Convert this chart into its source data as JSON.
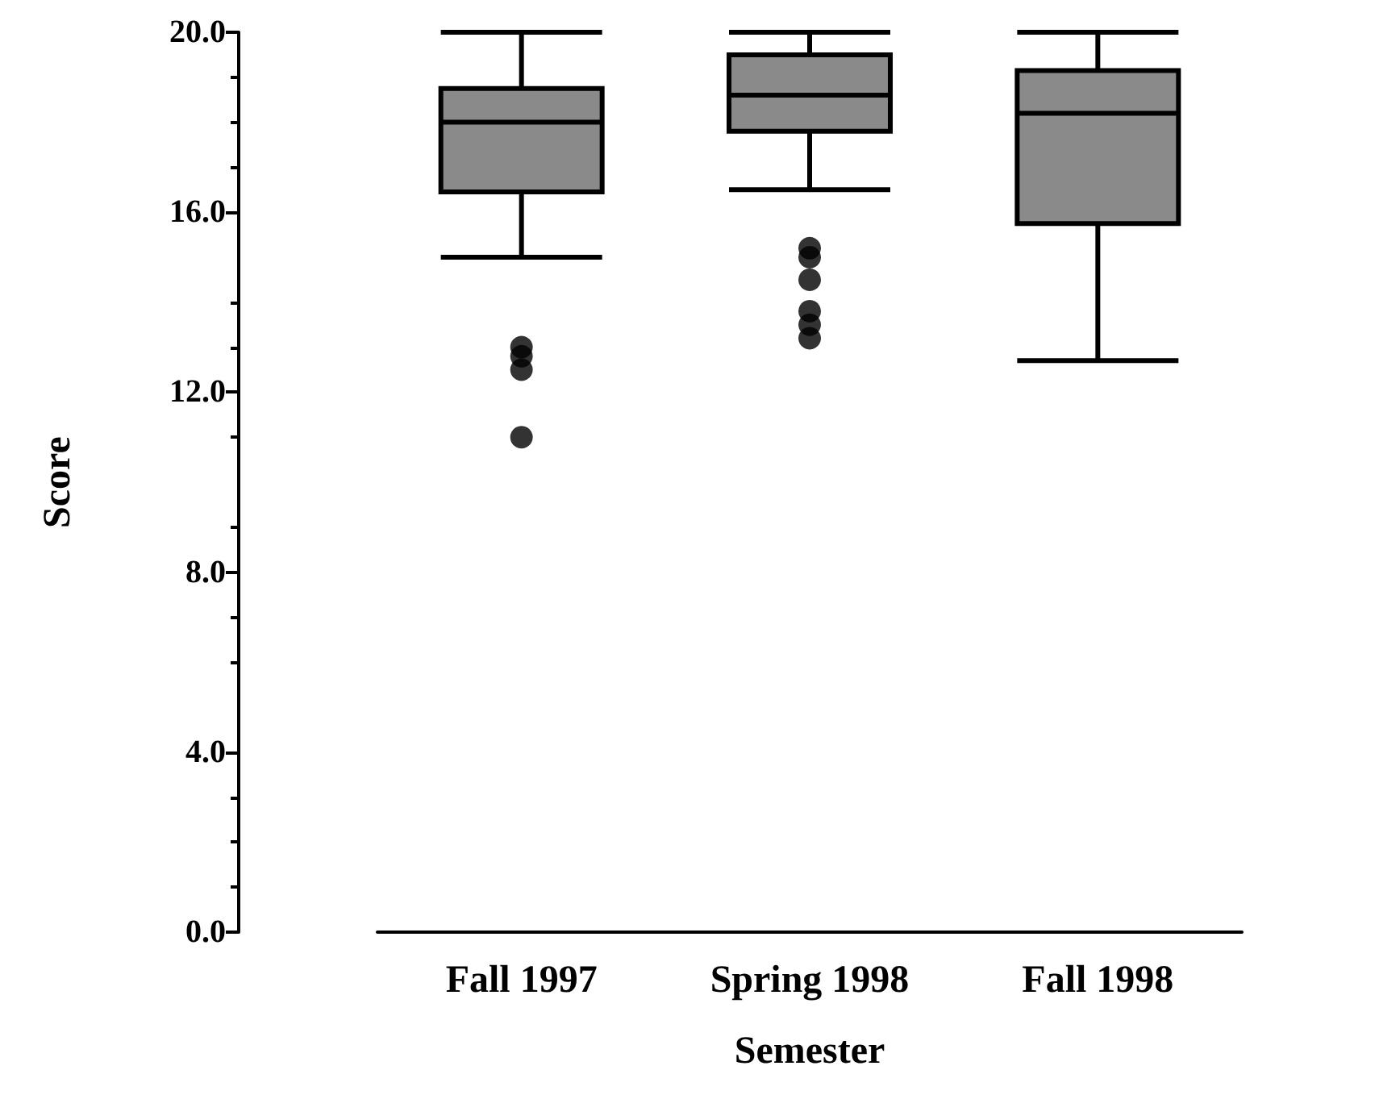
{
  "chart_data": {
    "type": "box",
    "xlabel": "Semester",
    "ylabel": "Score",
    "categories": [
      "Fall 1997",
      "Spring 1998",
      "Fall 1998"
    ],
    "boxes": [
      {
        "low": 15.0,
        "q1": 16.45,
        "median": 18.0,
        "q3": 18.75,
        "high": 20.0,
        "outliers": [
          13.0,
          12.8,
          12.5,
          11.0
        ]
      },
      {
        "low": 16.5,
        "q1": 17.8,
        "median": 18.6,
        "q3": 19.5,
        "high": 20.0,
        "outliers": [
          15.2,
          15.0,
          14.5,
          13.8,
          13.5,
          13.2
        ]
      },
      {
        "low": 12.7,
        "q1": 15.75,
        "median": 18.2,
        "q3": 19.15,
        "high": 20.0
      }
    ],
    "color": "#8a8a8a",
    "ylim": [
      0,
      20
    ],
    "yticks": [
      {
        "value": 0,
        "label": "0.0"
      },
      {
        "value": 4,
        "label": "4.0"
      },
      {
        "value": 8,
        "label": "8.0"
      },
      {
        "value": 12,
        "label": "12.0"
      },
      {
        "value": 16,
        "label": "16.0"
      },
      {
        "value": 20,
        "label": "20.0"
      }
    ],
    "grid": false
  }
}
